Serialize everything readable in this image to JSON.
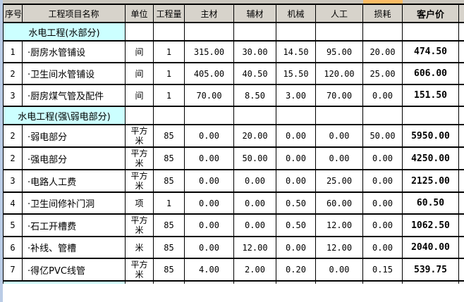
{
  "colors": {
    "section_bg": "#CCFFFF",
    "header_bg": "#D7D3CB",
    "selected_column": "#FBBB64",
    "row_strip": "#BACCE6",
    "col_strip": "#CAC6BE",
    "gridline": "#000000"
  },
  "table": {
    "columns": [
      "序号",
      "工程项目名称",
      "单位",
      "工程量",
      "主材",
      "辅材",
      "机械",
      "人工",
      "损耗",
      "客户价"
    ],
    "rows": [
      {
        "type": "section",
        "label": "水电工程(水部分)"
      },
      {
        "type": "item",
        "cells": [
          "1",
          "·厨房水管铺设",
          "间",
          "1",
          "315.00",
          "30.00",
          "14.50",
          "95.00",
          "20.00",
          "474.50"
        ]
      },
      {
        "type": "item",
        "cells": [
          "2",
          "·卫生间水管铺设",
          "间",
          "1",
          "405.00",
          "40.50",
          "15.50",
          "120.00",
          "25.00",
          "606.00"
        ]
      },
      {
        "type": "item",
        "cells": [
          "3",
          "·厨房煤气管及配件",
          "间",
          "1",
          "70.00",
          "8.50",
          "3.00",
          "70.00",
          "0.00",
          "151.50"
        ]
      },
      {
        "type": "section",
        "label": "水电工程(强\\弱电部分)"
      },
      {
        "type": "item",
        "cells": [
          "2",
          "·弱电部分",
          "平方米",
          "85",
          "0.00",
          "20.00",
          "0.00",
          "0.00",
          "50.00",
          "5950.00"
        ]
      },
      {
        "type": "item",
        "cells": [
          "2",
          "·强电部分",
          "平方米",
          "85",
          "0.00",
          "50.00",
          "0.00",
          "0.00",
          "0.00",
          "4250.00"
        ]
      },
      {
        "type": "item",
        "cells": [
          "3",
          "·电路人工费",
          "平方米",
          "85",
          "0.00",
          "0.00",
          "0.00",
          "25.00",
          "0.00",
          "2125.00"
        ]
      },
      {
        "type": "item",
        "cells": [
          "4",
          "·卫生间修补门洞",
          "项",
          "1",
          "0.00",
          "0.00",
          "0.50",
          "60.00",
          "0.00",
          "60.50"
        ]
      },
      {
        "type": "item",
        "cells": [
          "5",
          "·石工开槽费",
          "平方米",
          "85",
          "0.00",
          "0.00",
          "0.50",
          "12.00",
          "0.00",
          "1062.50"
        ]
      },
      {
        "type": "item",
        "cells": [
          "6",
          "·补线、管槽",
          "米",
          "85",
          "0.00",
          "12.00",
          "0.00",
          "12.00",
          "0.00",
          "2040.00"
        ]
      },
      {
        "type": "item",
        "cells": [
          "7",
          "·得亿PVC线管",
          "平方米",
          "85",
          "4.00",
          "2.00",
          "0.20",
          "0.00",
          "0.15",
          "539.75"
        ]
      },
      {
        "type": "partial",
        "label": ""
      }
    ]
  }
}
